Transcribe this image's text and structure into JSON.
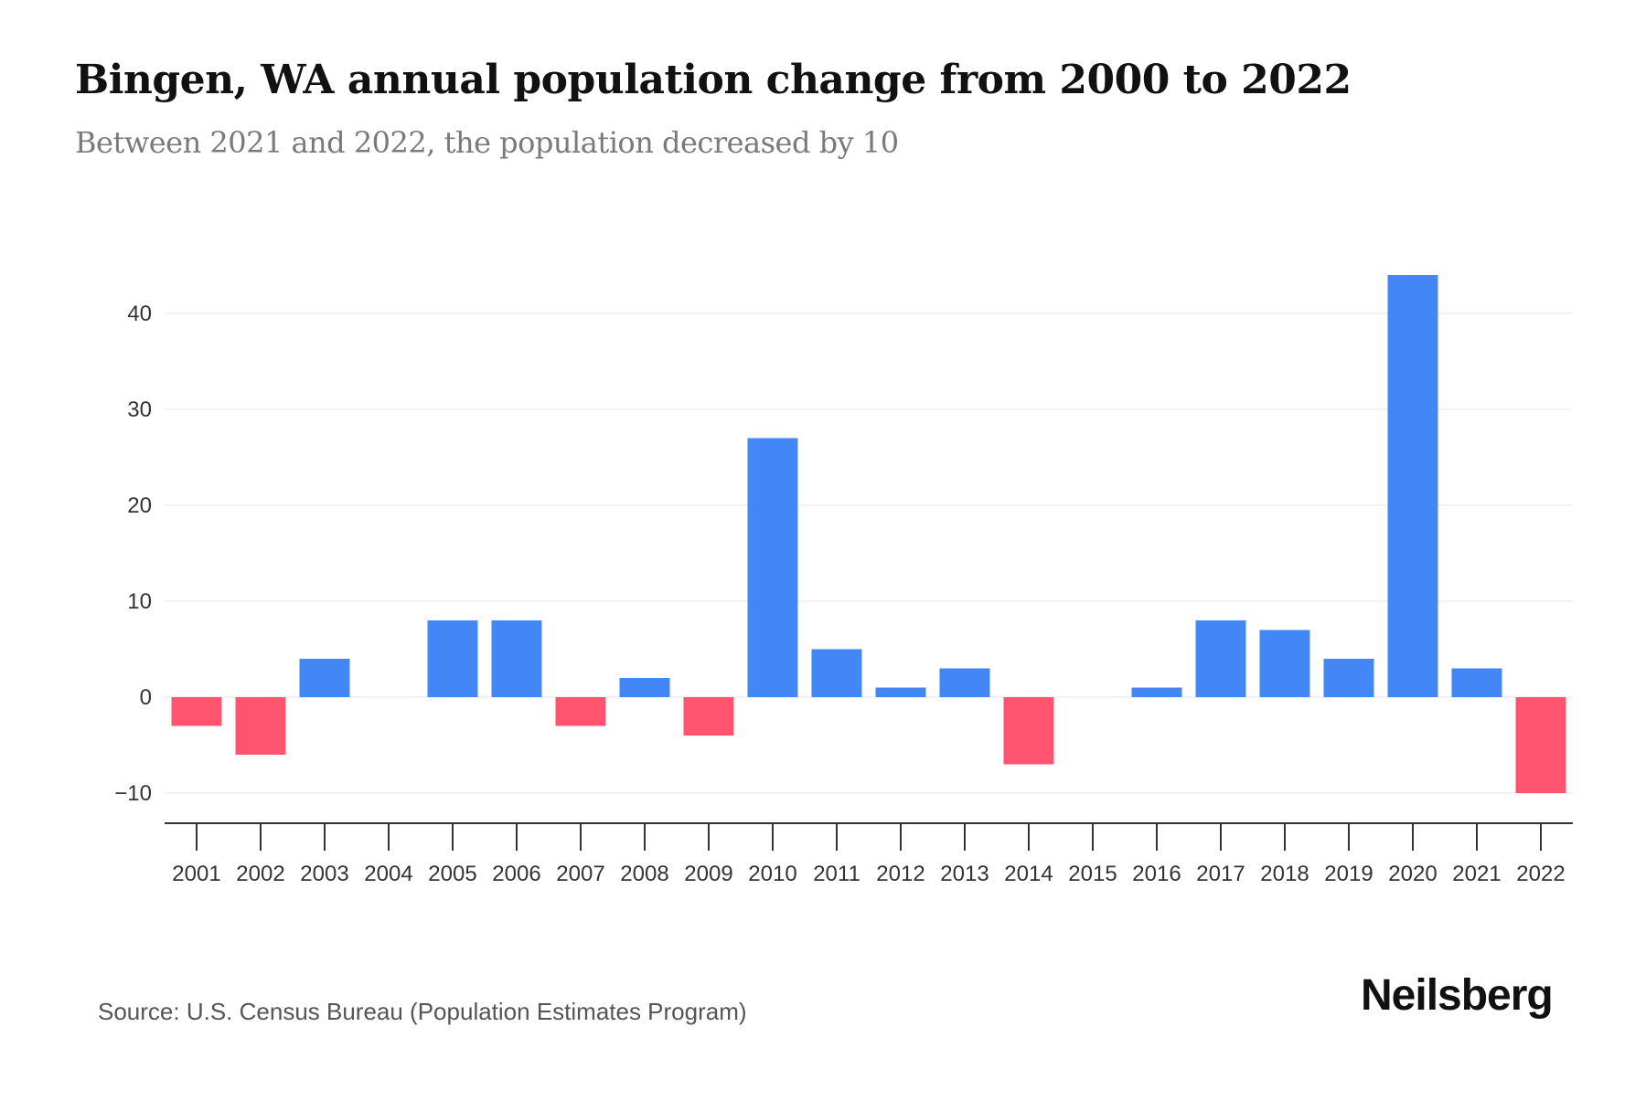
{
  "header": {
    "title": "Bingen, WA annual population change from 2000 to 2022",
    "subtitle": "Between 2021 and 2022, the population decreased by 10"
  },
  "footer": {
    "source": "Source: U.S. Census Bureau (Population Estimates Program)",
    "logo": "Neilsberg"
  },
  "colors": {
    "positive": "#4287f5",
    "negative": "#ff5470",
    "gridline": "#eeeeee",
    "axis": "#333333",
    "tick_label": "#333333"
  },
  "chart_data": {
    "type": "bar",
    "title": "Bingen, WA annual population change from 2000 to 2022",
    "subtitle": "Between 2021 and 2022, the population decreased by 10",
    "xlabel": "",
    "ylabel": "",
    "categories": [
      "2001",
      "2002",
      "2003",
      "2004",
      "2005",
      "2006",
      "2007",
      "2008",
      "2009",
      "2010",
      "2011",
      "2012",
      "2013",
      "2014",
      "2015",
      "2016",
      "2017",
      "2018",
      "2019",
      "2020",
      "2021",
      "2022"
    ],
    "values": [
      -3,
      -6,
      4,
      0,
      8,
      8,
      -3,
      2,
      -4,
      27,
      5,
      1,
      3,
      -7,
      0,
      1,
      8,
      7,
      4,
      44,
      3,
      -10
    ],
    "ylim": [
      -13,
      44
    ],
    "yticks": [
      -10,
      0,
      10,
      20,
      30,
      40
    ],
    "ytick_labels": [
      "−10",
      "0",
      "10",
      "20",
      "30",
      "40"
    ],
    "grid": true,
    "legend": "none",
    "color_rule": "blue for increase, red for decrease"
  }
}
